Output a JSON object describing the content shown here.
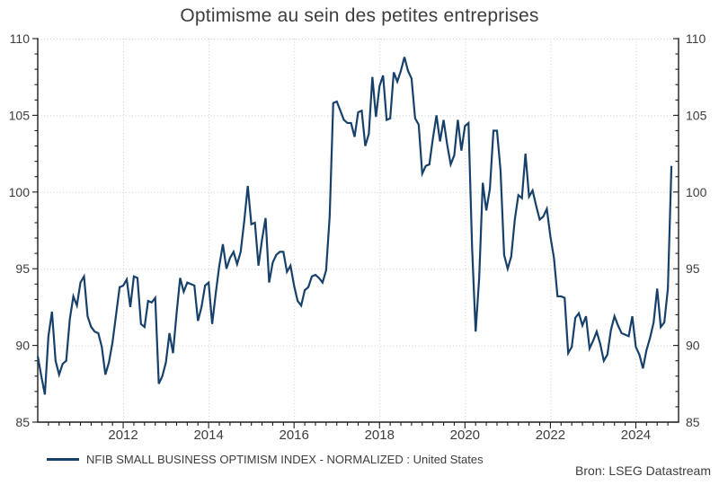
{
  "title": "Optimisme au sein des petites entreprises",
  "source": "Bron: LSEG Datastream",
  "legend": {
    "label": "NFIB SMALL BUSINESS OPTIMISM INDEX - NORMALIZED : United States",
    "color": "#17406b"
  },
  "colors": {
    "line": "#17406b",
    "axis": "#1c1c1c",
    "grid": "#cdcdcd",
    "text": "#3d3d3d"
  },
  "chart_data": {
    "type": "line",
    "title": "Optimisme au sein des petites entreprises",
    "xlabel": "",
    "ylabel": "",
    "x_range": [
      2010,
      2025
    ],
    "y_range": [
      85,
      110
    ],
    "y_ticks_major": [
      85,
      90,
      95,
      100,
      105,
      110
    ],
    "y_minor_step": 1,
    "x_ticks_major": [
      2012,
      2014,
      2016,
      2018,
      2020,
      2022,
      2024
    ],
    "x_minor_step": 0.25,
    "grid": "dotted-at-major-ticks",
    "legend_position": "bottom-left",
    "series": [
      {
        "name": "NFIB SMALL BUSINESS OPTIMISM INDEX - NORMALIZED : United States",
        "color": "#17406b",
        "frequency": "monthly",
        "start_year": 2010,
        "start_month": 1,
        "values": [
          89.3,
          88.0,
          86.8,
          90.6,
          92.2,
          89.0,
          88.1,
          88.8,
          89.0,
          91.7,
          93.2,
          92.6,
          94.1,
          94.5,
          91.9,
          91.2,
          90.9,
          90.8,
          89.9,
          88.1,
          88.9,
          90.2,
          92.0,
          93.8,
          93.9,
          94.3,
          92.5,
          94.5,
          94.4,
          91.4,
          91.2,
          92.9,
          92.8,
          93.1,
          87.5,
          88.0,
          88.9,
          90.8,
          89.5,
          92.1,
          94.4,
          93.5,
          94.1,
          94.0,
          93.9,
          91.6,
          92.5,
          93.9,
          94.1,
          91.4,
          93.4,
          95.2,
          96.6,
          95.0,
          95.7,
          96.1,
          95.3,
          96.1,
          98.1,
          100.4,
          97.9,
          98.0,
          95.2,
          96.9,
          98.3,
          94.1,
          95.4,
          95.9,
          96.1,
          96.1,
          94.8,
          95.2,
          93.9,
          92.9,
          92.6,
          93.6,
          93.8,
          94.5,
          94.6,
          94.4,
          94.1,
          94.9,
          98.4,
          105.8,
          105.9,
          105.3,
          104.7,
          104.5,
          104.5,
          103.6,
          105.2,
          105.3,
          103.0,
          103.8,
          107.5,
          104.9,
          106.9,
          107.6,
          104.7,
          104.8,
          107.8,
          107.2,
          107.9,
          108.8,
          107.9,
          107.4,
          104.8,
          104.4,
          101.2,
          101.7,
          101.8,
          103.5,
          105.0,
          103.3,
          104.7,
          103.1,
          101.8,
          102.4,
          104.7,
          102.7,
          104.3,
          104.5,
          96.4,
          90.9,
          94.4,
          100.6,
          98.8,
          100.2,
          104.0,
          104.0,
          101.4,
          95.9,
          95.0,
          95.8,
          98.2,
          99.8,
          99.6,
          102.5,
          99.7,
          100.1,
          99.1,
          98.2,
          98.4,
          98.9,
          97.1,
          95.7,
          93.2,
          93.2,
          93.1,
          89.5,
          89.9,
          91.8,
          92.1,
          91.3,
          91.9,
          89.8,
          90.3,
          90.9,
          90.1,
          89.0,
          89.4,
          91.0,
          91.9,
          91.3,
          90.8,
          90.7,
          90.6,
          91.9,
          89.9,
          89.4,
          88.5,
          89.7,
          90.5,
          91.5,
          93.7,
          91.2,
          91.5,
          93.7,
          101.7
        ]
      }
    ]
  }
}
